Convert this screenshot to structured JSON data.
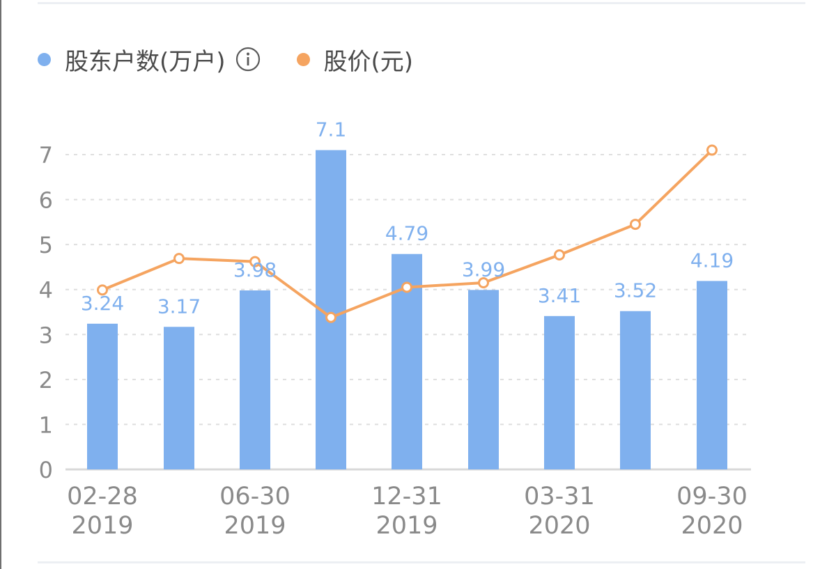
{
  "legend": {
    "shareholders": {
      "label": "股东户数(万户)",
      "icon": "info-icon"
    },
    "price": {
      "label": "股价(元)"
    }
  },
  "colors": {
    "bar": "#7fb0ee",
    "line": "#f5a460",
    "grid": "#dedede",
    "axis": "#d8d8d8",
    "tick": "#8a8a8a"
  },
  "chart_data": {
    "type": "bar",
    "categories": [
      "02-28 2019",
      "",
      "06-30 2019",
      "",
      "12-31 2019",
      "",
      "03-31 2020",
      "",
      "09-30 2020"
    ],
    "x_tick_labels": [
      {
        "index": 0,
        "lines": [
          "02-28",
          "2019"
        ]
      },
      {
        "index": 2,
        "lines": [
          "06-30",
          "2019"
        ]
      },
      {
        "index": 4,
        "lines": [
          "12-31",
          "2019"
        ]
      },
      {
        "index": 6,
        "lines": [
          "03-31",
          "2020"
        ]
      },
      {
        "index": 8,
        "lines": [
          "09-30",
          "2020"
        ]
      }
    ],
    "series": [
      {
        "name": "股东户数(万户)",
        "type": "bar",
        "values": [
          3.24,
          3.17,
          3.98,
          7.1,
          4.79,
          3.99,
          3.41,
          3.52,
          4.19
        ],
        "labels": [
          "3.24",
          "3.17",
          "3.98",
          "7.1",
          "4.79",
          "3.99",
          "3.41",
          "3.52",
          "4.19"
        ]
      },
      {
        "name": "股价(元)",
        "type": "line",
        "values": [
          3.99,
          4.69,
          4.62,
          3.38,
          4.05,
          4.15,
          4.77,
          5.45,
          7.1
        ]
      }
    ],
    "y_ticks": [
      "0",
      "1",
      "2",
      "3",
      "4",
      "5",
      "6",
      "7"
    ],
    "ylim": [
      0,
      7
    ],
    "grid": true,
    "legend_position": "top-left"
  }
}
